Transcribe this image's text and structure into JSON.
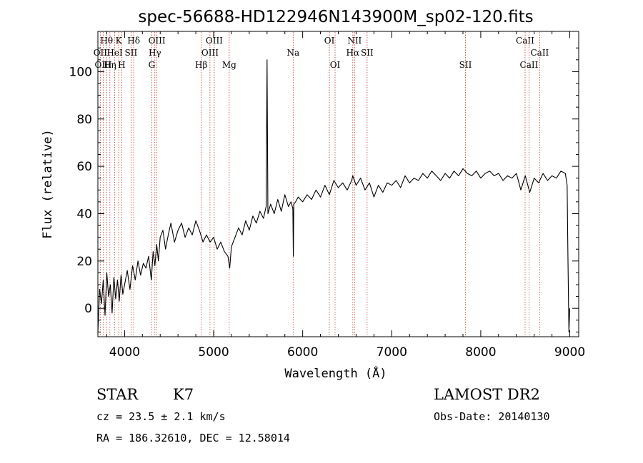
{
  "chart_data": {
    "type": "line",
    "title": "spec-56688-HD122946N143900M_sp02-120.fits",
    "xlabel": "Wavelength (Å)",
    "ylabel": "Flux (relative)",
    "xlim": [
      3700,
      9100
    ],
    "ylim": [
      -12,
      117
    ],
    "x_ticks": [
      4000,
      5000,
      6000,
      7000,
      8000,
      9000
    ],
    "y_ticks": [
      0,
      20,
      40,
      60,
      80,
      100
    ],
    "x_tick_labels": [
      "4000",
      "5000",
      "6000",
      "7000",
      "8000",
      "9000"
    ],
    "y_tick_labels": [
      "0",
      "20",
      "40",
      "60",
      "80",
      "100"
    ],
    "grid": false,
    "series": [
      {
        "color": "#000000",
        "x": [
          3700,
          3720,
          3740,
          3760,
          3780,
          3800,
          3820,
          3840,
          3860,
          3880,
          3900,
          3920,
          3940,
          3960,
          3980,
          4000,
          4030,
          4060,
          4090,
          4120,
          4150,
          4180,
          4210,
          4240,
          4270,
          4300,
          4320,
          4340,
          4360,
          4380,
          4400,
          4430,
          4460,
          4490,
          4520,
          4560,
          4600,
          4640,
          4680,
          4720,
          4760,
          4800,
          4840,
          4880,
          4920,
          4960,
          5000,
          5040,
          5080,
          5120,
          5160,
          5180,
          5200,
          5240,
          5280,
          5320,
          5360,
          5400,
          5440,
          5480,
          5520,
          5560,
          5590,
          5600,
          5610,
          5640,
          5680,
          5720,
          5760,
          5800,
          5840,
          5870,
          5890,
          5895,
          5900,
          5920,
          5950,
          6000,
          6050,
          6100,
          6150,
          6200,
          6250,
          6300,
          6350,
          6400,
          6450,
          6500,
          6550,
          6563,
          6600,
          6650,
          6700,
          6750,
          6800,
          6850,
          6900,
          6950,
          7000,
          7050,
          7100,
          7150,
          7200,
          7250,
          7300,
          7350,
          7400,
          7450,
          7500,
          7550,
          7600,
          7650,
          7700,
          7750,
          7800,
          7850,
          7900,
          7950,
          8000,
          8050,
          8100,
          8150,
          8200,
          8250,
          8300,
          8350,
          8400,
          8450,
          8500,
          8550,
          8600,
          8650,
          8700,
          8750,
          8800,
          8850,
          8900,
          8950,
          8970,
          8980,
          8990,
          9000
        ],
        "y": [
          -10,
          8,
          2,
          12,
          -3,
          15,
          5,
          10,
          -2,
          13,
          4,
          12,
          3,
          14,
          6,
          10,
          16,
          8,
          18,
          12,
          20,
          14,
          19,
          17,
          22,
          12,
          24,
          18,
          27,
          20,
          30,
          33,
          25,
          31,
          36,
          28,
          33,
          36,
          30,
          34,
          31,
          37,
          33,
          28,
          31,
          28,
          30,
          25,
          28,
          24,
          22,
          17,
          26,
          30,
          34,
          31,
          37,
          33,
          39,
          36,
          41,
          38,
          43,
          105,
          40,
          44,
          40,
          46,
          41,
          48,
          43,
          45,
          42,
          22,
          44,
          45,
          47,
          45,
          48,
          46,
          50,
          47,
          52,
          48,
          54,
          51,
          53,
          50,
          54,
          56,
          52,
          55,
          50,
          53,
          47,
          52,
          49,
          53,
          52,
          54,
          51,
          56,
          53,
          55,
          54,
          57,
          55,
          58,
          56,
          54,
          57,
          55,
          58,
          56,
          59,
          57,
          56,
          58,
          55,
          57,
          58,
          56,
          57,
          54,
          56,
          55,
          57,
          50,
          56,
          49,
          55,
          53,
          57,
          54,
          56,
          55,
          58,
          57,
          52,
          20,
          -10,
          0
        ]
      }
    ],
    "spectral_lines": [
      {
        "label": "Hθ",
        "wl": 3798,
        "row": 1
      },
      {
        "label": "OII",
        "wl": 3727,
        "row": 2
      },
      {
        "label": "OIII",
        "wl": 3760,
        "row": 3
      },
      {
        "label": "K",
        "wl": 3934,
        "row": 1
      },
      {
        "label": "HeI",
        "wl": 3889,
        "row": 2
      },
      {
        "label": "Hη",
        "wl": 3835,
        "row": 3
      },
      {
        "label": "SII",
        "wl": 4072,
        "row": 2
      },
      {
        "label": "H",
        "wl": 3968,
        "row": 3
      },
      {
        "label": "Hδ",
        "wl": 4102,
        "row": 1
      },
      {
        "label": "OIII",
        "wl": 4363,
        "row": 1
      },
      {
        "label": "Hγ",
        "wl": 4340,
        "row": 2
      },
      {
        "label": "G",
        "wl": 4305,
        "row": 3
      },
      {
        "label": "Hβ",
        "wl": 4861,
        "row": 3
      },
      {
        "label": "OIII",
        "wl": 5007,
        "row": 1
      },
      {
        "label": "OIII",
        "wl": 4959,
        "row": 2
      },
      {
        "label": "Mg",
        "wl": 5175,
        "row": 3
      },
      {
        "label": "Na",
        "wl": 5893,
        "row": 2
      },
      {
        "label": "OI",
        "wl": 6300,
        "row": 1
      },
      {
        "label": "OI",
        "wl": 6364,
        "row": 3
      },
      {
        "label": "NII",
        "wl": 6583,
        "row": 1
      },
      {
        "label": "Hα",
        "wl": 6563,
        "row": 2
      },
      {
        "label": "SII",
        "wl": 6724,
        "row": 2
      },
      {
        "label": "SII",
        "wl": 7828,
        "row": 3
      },
      {
        "label": "CaII",
        "wl": 8498,
        "row": 1
      },
      {
        "label": "CaII",
        "wl": 8662,
        "row": 2
      },
      {
        "label": "CaII",
        "wl": 8542,
        "row": 3
      }
    ]
  },
  "info": {
    "object_class": "STAR",
    "subclass": "K7",
    "survey": "LAMOST DR2",
    "redshift": "cz = 23.5 ± 2.1 km/s",
    "obs_date": "Obs-Date: 20140130",
    "coords": "RA = 186.32610, DEC =  12.58014"
  }
}
